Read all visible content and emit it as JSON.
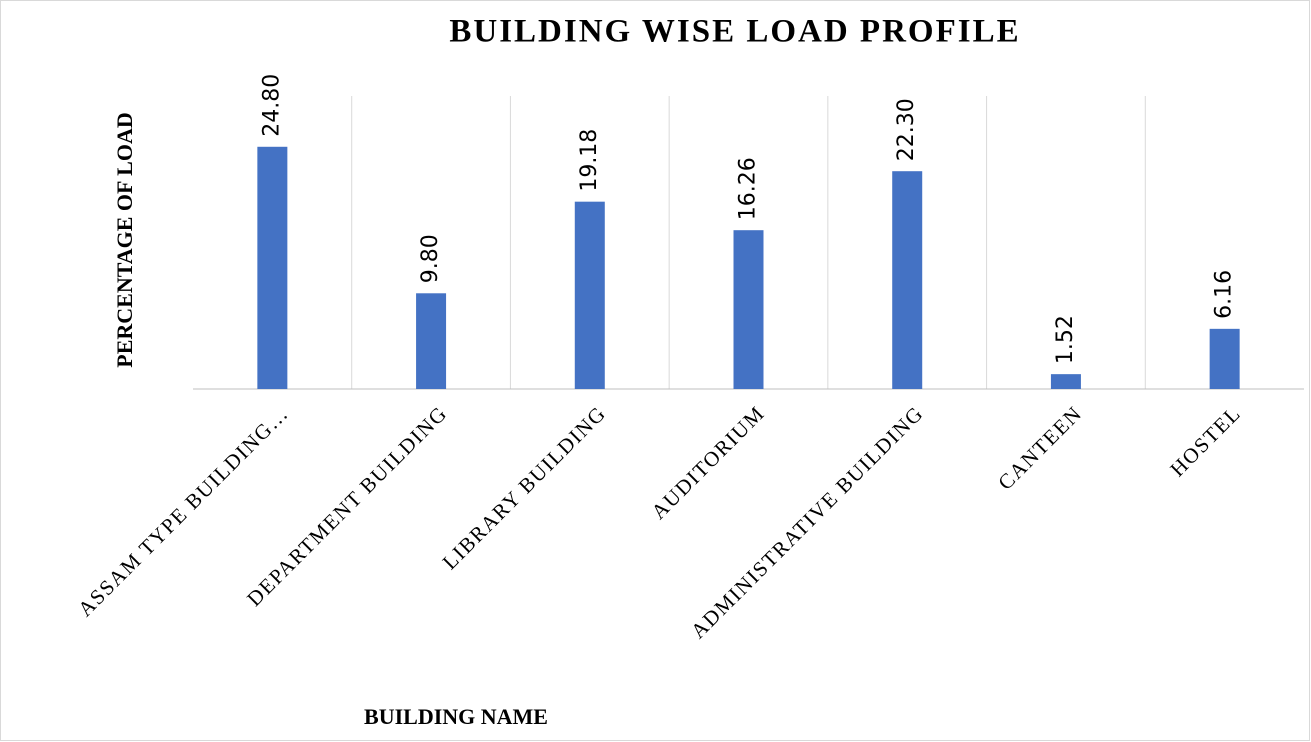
{
  "chart_data": {
    "type": "bar",
    "title": "BUILDING WISE LOAD PROFILE",
    "x_label": "BUILDING NAME",
    "y_label": "PERCENTAGE OF LOAD",
    "categories": [
      "ASSAM TYPE BUILDING…",
      "DEPARTMENT BUILDING",
      "LIBRARY BUILDING",
      "AUDITORIUM",
      "ADMINISTRATIVE BUILDING",
      "CANTEEN",
      "HOSTEL"
    ],
    "values": [
      24.8,
      9.8,
      19.18,
      16.26,
      22.3,
      1.52,
      6.16
    ],
    "value_labels": [
      "24.80",
      "9.80",
      "19.18",
      "16.26",
      "22.30",
      "1.52",
      "6.16"
    ],
    "color": "#4472c4",
    "ylim": [
      0,
      30
    ],
    "grid": true
  }
}
